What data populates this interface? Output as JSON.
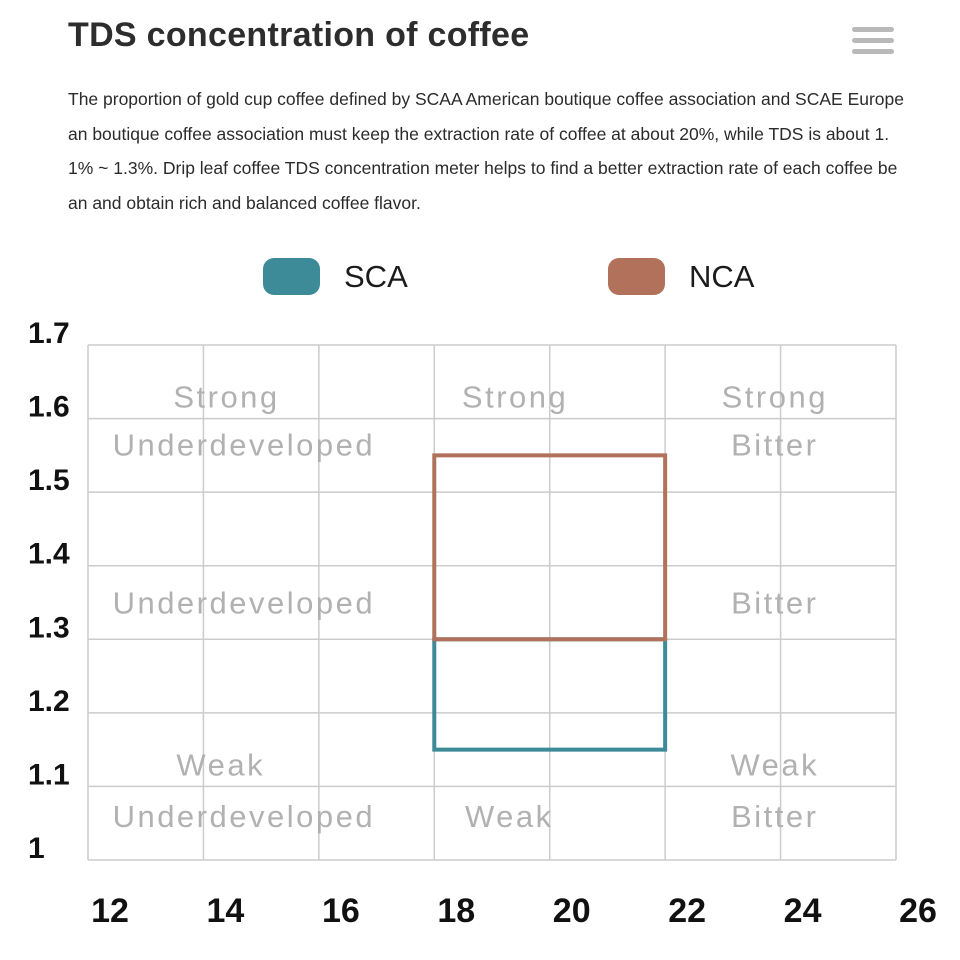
{
  "header": {
    "title": "TDS concentration of coffee"
  },
  "description": "The proportion of gold cup coffee defined by SCAA American boutique coffee association and SCAE European boutique coffee association must keep the extraction rate of coffee at about 20%, while TDS is about 1.1% ~ 1.3%. Drip leaf coffee TDS concentration meter helps to find a better extraction rate of each coffee bean and obtain rich and balanced coffee flavor.",
  "legend": {
    "items": [
      {
        "label": "SCA",
        "color": "#3d8a99"
      },
      {
        "label": "NCA",
        "color": "#b1715a"
      }
    ]
  },
  "chart_data": {
    "type": "rect-regions",
    "title": "",
    "x_axis": {
      "min": 12,
      "max": 26,
      "ticks": [
        12,
        14,
        16,
        18,
        20,
        22,
        24,
        26
      ]
    },
    "y_axis": {
      "min": 1.0,
      "max": 1.7,
      "ticks": [
        1,
        1.1,
        1.2,
        1.3,
        1.4,
        1.5,
        1.6,
        1.7
      ],
      "tick_labels": [
        "1",
        "1.1",
        "1.2",
        "1.3",
        "1.4",
        "1.5",
        "1.6",
        "1.7"
      ]
    },
    "grid": true,
    "grid_color": "#cccccc",
    "axis_text_color": "#111111",
    "label_color": "#b1b1b1",
    "series": [
      {
        "name": "SCA",
        "color": "#3d8a99",
        "x_range": [
          18,
          22
        ],
        "y_range": [
          1.15,
          1.3
        ]
      },
      {
        "name": "NCA",
        "color": "#b1715a",
        "x_range": [
          18,
          22
        ],
        "y_range": [
          1.3,
          1.55
        ]
      }
    ],
    "region_labels": [
      {
        "text": "Strong",
        "x": 14.4,
        "y": 1.63
      },
      {
        "text": "Underdeveloped",
        "x": 14.7,
        "y": 1.565
      },
      {
        "text": "Strong",
        "x": 19.4,
        "y": 1.63
      },
      {
        "text": "Strong",
        "x": 23.9,
        "y": 1.63
      },
      {
        "text": "Bitter",
        "x": 23.9,
        "y": 1.565
      },
      {
        "text": "Underdeveloped",
        "x": 14.7,
        "y": 1.35
      },
      {
        "text": "Bitter",
        "x": 23.9,
        "y": 1.35
      },
      {
        "text": "Weak",
        "x": 14.3,
        "y": 1.13
      },
      {
        "text": "Underdeveloped",
        "x": 14.7,
        "y": 1.06
      },
      {
        "text": "Weak",
        "x": 19.3,
        "y": 1.06
      },
      {
        "text": "Weak",
        "x": 23.9,
        "y": 1.13
      },
      {
        "text": "Bitter",
        "x": 23.9,
        "y": 1.06
      }
    ]
  }
}
